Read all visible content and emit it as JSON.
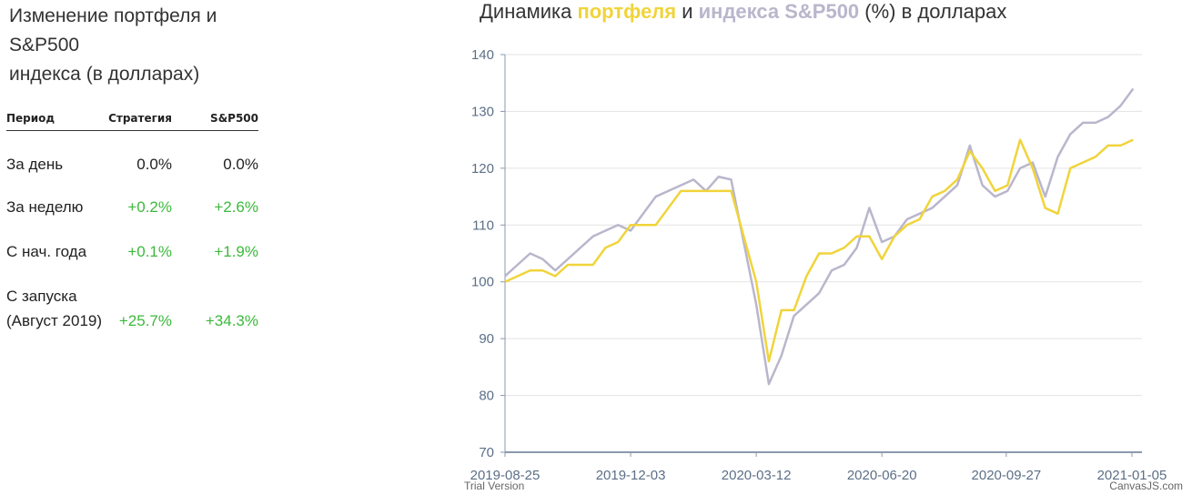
{
  "panel": {
    "title_lines": [
      "Изменение портфеля и",
      "S&P500",
      "индекса (в долларах)"
    ],
    "table": {
      "header": [
        "Период",
        "Стратегия",
        "S&P500"
      ],
      "rows": [
        [
          "За день",
          "0.0%",
          "0.0%"
        ],
        [
          "За неделю",
          "+0.2%",
          "+2.6%"
        ],
        [
          "С нач. года",
          "+0.1%",
          "+1.9%"
        ],
        [
          "С запуска (Август 2019)",
          "+25.7%",
          "+34.3%"
        ]
      ]
    }
  },
  "chart_data": {
    "type": "line",
    "title": [
      "Динамика ",
      "портфеля",
      " и ",
      "индекса S&P500",
      " (%) в долларах"
    ],
    "x": [
      "2019-08-25",
      "2019-09-04",
      "2019-09-14",
      "2019-09-24",
      "2019-10-04",
      "2019-10-14",
      "2019-10-24",
      "2019-11-03",
      "2019-11-13",
      "2019-11-23",
      "2019-12-03",
      "2019-12-13",
      "2019-12-23",
      "2020-01-02",
      "2020-01-12",
      "2020-01-22",
      "2020-02-01",
      "2020-02-11",
      "2020-02-21",
      "2020-03-02",
      "2020-03-12",
      "2020-03-22",
      "2020-04-01",
      "2020-04-11",
      "2020-04-21",
      "2020-05-01",
      "2020-05-11",
      "2020-05-21",
      "2020-05-31",
      "2020-06-10",
      "2020-06-20",
      "2020-06-30",
      "2020-07-10",
      "2020-07-20",
      "2020-07-30",
      "2020-08-09",
      "2020-08-19",
      "2020-08-29",
      "2020-09-08",
      "2020-09-18",
      "2020-09-28",
      "2020-10-08",
      "2020-10-18",
      "2020-10-28",
      "2020-11-07",
      "2020-11-17",
      "2020-11-27",
      "2020-12-07",
      "2020-12-17",
      "2020-12-27",
      "2021-01-06"
    ],
    "series": [
      {
        "name": "индекса S&P500",
        "color": "#b9b6cc",
        "values": [
          101,
          103,
          105,
          104,
          102,
          104,
          106,
          108,
          109,
          110,
          109,
          112,
          115,
          116,
          117,
          118,
          116,
          118.5,
          118,
          107,
          96,
          82,
          87,
          94,
          96,
          98,
          102,
          103,
          106,
          113,
          107,
          108,
          111,
          112,
          113,
          115,
          117,
          124,
          117,
          115,
          116,
          120,
          121,
          115,
          122,
          126,
          128,
          128,
          129,
          131,
          134
        ]
      },
      {
        "name": "портфеля",
        "color": "#f0d43a",
        "values": [
          100,
          101,
          102,
          102,
          101,
          103,
          103,
          103,
          106,
          107,
          110,
          110,
          110,
          113,
          116,
          116,
          116,
          116,
          116,
          108,
          100,
          86,
          95,
          95,
          101,
          105,
          105,
          106,
          108,
          108,
          104,
          108,
          110,
          111,
          115,
          116,
          118,
          123,
          120,
          116,
          117,
          125,
          120,
          113,
          112,
          120,
          121,
          122,
          124,
          124,
          125
        ]
      }
    ],
    "xlim": [
      "2019-08-25",
      "2021-01-13"
    ],
    "xticks": [
      "2019-08-25",
      "2019-12-03",
      "2020-03-12",
      "2020-06-20",
      "2020-09-27",
      "2021-01-05"
    ],
    "ylim": [
      70,
      140
    ],
    "yticks": [
      70,
      80,
      90,
      100,
      110,
      120,
      130,
      140
    ],
    "grid": true,
    "watermarks": [
      "Trial Version",
      "CanvasJS.com"
    ]
  }
}
